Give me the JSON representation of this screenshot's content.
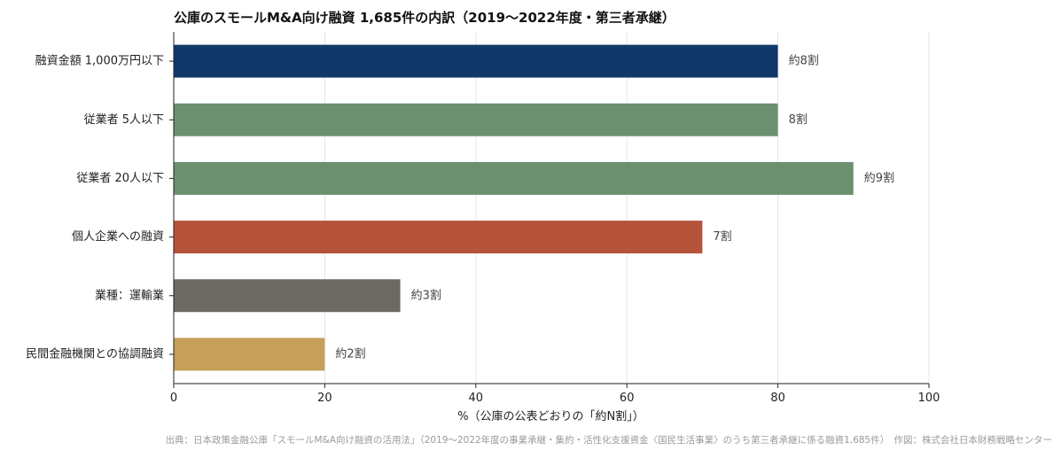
{
  "chart_data": {
    "type": "bar",
    "orientation": "horizontal",
    "title": "公庫のスモールM&A向け融資 1,685件の内訳（2019〜2022年度・第三者承継）",
    "xlabel": "%（公庫の公表どおりの「約N割」）",
    "ylabel": "",
    "xlim": [
      0,
      100
    ],
    "xticks": [
      0,
      20,
      40,
      60,
      80,
      100
    ],
    "grid": "vertical",
    "legend": "none",
    "categories": [
      "融資金額 1,000万円以下",
      "従業者 5人以下",
      "従業者 20人以下",
      "個人企業への融資",
      "業種：運輸業",
      "民間金融機関との協調融資"
    ],
    "values": [
      80,
      80,
      90,
      70,
      30,
      20
    ],
    "data_labels": [
      "約8割",
      "8割",
      "約9割",
      "7割",
      "約3割",
      "約2割"
    ],
    "colors": [
      "#10386b",
      "#6b9070",
      "#6b9070",
      "#b5533b",
      "#6a6a62",
      "#c6a05a"
    ],
    "source": "出典：日本政策金融公庫「スモールM&A向け融資の活用法」（2019〜2022年度の事業承継・集約・活性化支援資金〈国民生活事業〉のうち第三者承継に係る融資1,685件）　作図：株式会社日本財務戦略センター"
  }
}
